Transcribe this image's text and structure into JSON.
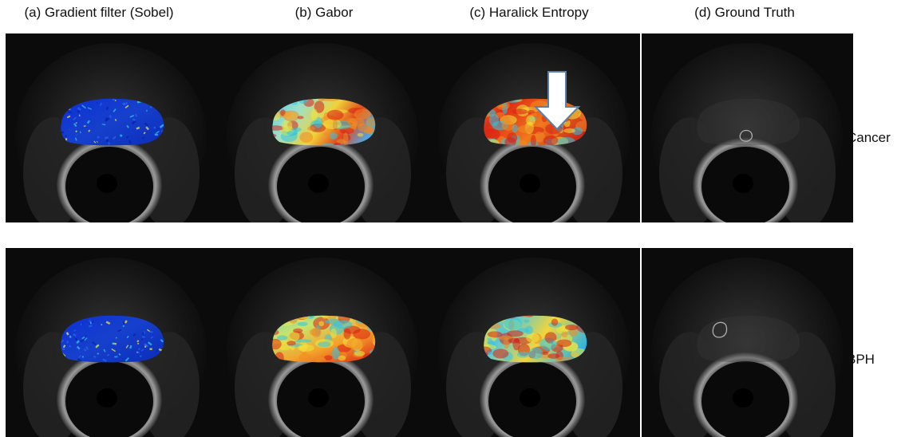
{
  "columns": [
    {
      "title": "(a) Gradient filter (Sobel)",
      "map": "sobel"
    },
    {
      "title": "(b) Gabor",
      "map": "gabor"
    },
    {
      "title": "(c) Haralick Entropy",
      "map": "haralick"
    },
    {
      "title": "(d) Ground Truth",
      "map": "ground-truth"
    }
  ],
  "rows": [
    {
      "label": "Cancer"
    },
    {
      "label": "BPH"
    }
  ],
  "colors": {
    "background": "#ffffff",
    "mri_dark": "#0b0b0b",
    "heat_blue": "#1133cc",
    "heat_cyan": "#2ec7e6",
    "heat_yellow": "#f2e53a",
    "heat_red": "#d81f12",
    "contour": "#f0f0f0"
  },
  "annotation": {
    "arrow": "white-down-arrow",
    "panel": "cancer-haralick"
  }
}
